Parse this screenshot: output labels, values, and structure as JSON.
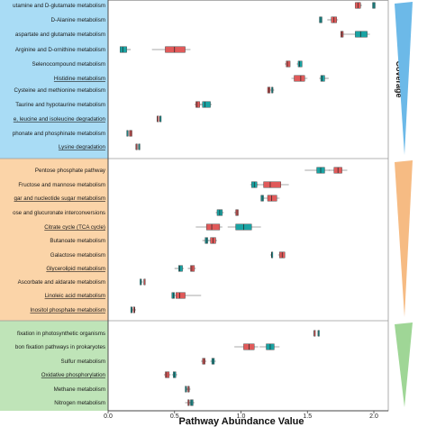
{
  "chart_data": {
    "type": "boxplot",
    "xlabel": "Pathway Abundance Value",
    "xlim": [
      0.0,
      2.0
    ],
    "xticks": [
      "0.0",
      "0.5",
      "1.0",
      "1.5",
      "2.0"
    ],
    "side_label": "Coverage",
    "colors": {
      "group_red": "#e05a5a",
      "group_teal": "#1aa3a3",
      "panel_blue": "#a9dcf5",
      "panel_orange": "#fbd4a8",
      "panel_green": "#bfe4b8",
      "tri_blue": "#6cb9e8",
      "tri_orange": "#f6bb83",
      "tri_green": "#9fd696"
    },
    "panels": [
      {
        "color_key": "blue",
        "rows": [
          {
            "label": "utamine and D-glutamate metabolism",
            "underline": false,
            "boxes": [
              {
                "color": "red",
                "q1": 1.86,
                "med": 1.88,
                "q3": 1.9,
                "wlo": 1.86,
                "whi": 1.91
              },
              {
                "color": "teal",
                "q1": 1.99,
                "med": 2.0,
                "q3": 2.01,
                "wlo": 1.99,
                "whi": 2.01
              }
            ]
          },
          {
            "label": "D-Alanine metabolism",
            "underline": false,
            "boxes": [
              {
                "color": "red",
                "q1": 1.68,
                "med": 1.7,
                "q3": 1.72,
                "wlo": 1.65,
                "whi": 1.73
              },
              {
                "color": "teal",
                "q1": 1.59,
                "med": 1.6,
                "q3": 1.61,
                "wlo": 1.59,
                "whi": 1.61
              }
            ]
          },
          {
            "label": "aspartate and glutamate metabolism",
            "underline": false,
            "boxes": [
              {
                "color": "red",
                "q1": 1.75,
                "med": 1.76,
                "q3": 1.77,
                "wlo": 1.75,
                "whi": 1.77
              },
              {
                "color": "teal",
                "q1": 1.86,
                "med": 1.9,
                "q3": 1.95,
                "wlo": 1.75,
                "whi": 1.97
              }
            ]
          },
          {
            "label": "Arginine and D-ornithine metabolism",
            "underline": false,
            "boxes": [
              {
                "color": "red",
                "q1": 0.43,
                "med": 0.5,
                "q3": 0.58,
                "wlo": 0.33,
                "whi": 0.62
              },
              {
                "color": "teal",
                "q1": 0.09,
                "med": 0.11,
                "q3": 0.14,
                "wlo": 0.09,
                "whi": 0.17
              }
            ]
          },
          {
            "label": "Selenocompound metabolism",
            "underline": false,
            "boxes": [
              {
                "color": "red",
                "q1": 1.34,
                "med": 1.35,
                "q3": 1.37,
                "wlo": 1.33,
                "whi": 1.37
              },
              {
                "color": "teal",
                "q1": 1.43,
                "med": 1.44,
                "q3": 1.46,
                "wlo": 1.42,
                "whi": 1.46
              }
            ]
          },
          {
            "label": "Histidine metabolism",
            "underline": true,
            "boxes": [
              {
                "color": "red",
                "q1": 1.4,
                "med": 1.45,
                "q3": 1.48,
                "wlo": 1.38,
                "whi": 1.5
              },
              {
                "color": "teal",
                "q1": 1.6,
                "med": 1.61,
                "q3": 1.63,
                "wlo": 1.59,
                "whi": 1.66
              }
            ]
          },
          {
            "label": "Cysteine and methionine metabolism",
            "underline": false,
            "boxes": [
              {
                "color": "red",
                "q1": 1.2,
                "med": 1.21,
                "q3": 1.22,
                "wlo": 1.2,
                "whi": 1.22
              },
              {
                "color": "teal",
                "q1": 1.23,
                "med": 1.24,
                "q3": 1.24,
                "wlo": 1.22,
                "whi": 1.25
              }
            ]
          },
          {
            "label": "Taurine and hypotaurine metabolism",
            "underline": false,
            "boxes": [
              {
                "color": "red",
                "q1": 0.66,
                "med": 0.67,
                "q3": 0.69,
                "wlo": 0.65,
                "whi": 0.7
              },
              {
                "color": "teal",
                "q1": 0.71,
                "med": 0.73,
                "q3": 0.77,
                "wlo": 0.69,
                "whi": 0.78
              }
            ]
          },
          {
            "label": "e, leucine and isoleucine degradation",
            "underline": true,
            "boxes": [
              {
                "color": "red",
                "q1": 0.37,
                "med": 0.37,
                "q3": 0.38,
                "wlo": 0.37,
                "whi": 0.38
              },
              {
                "color": "teal",
                "q1": 0.39,
                "med": 0.39,
                "q3": 0.4,
                "wlo": 0.39,
                "whi": 0.4
              }
            ]
          },
          {
            "label": "phonate and phosphinate metabolism",
            "underline": false,
            "boxes": [
              {
                "color": "red",
                "q1": 0.16,
                "med": 0.17,
                "q3": 0.18,
                "wlo": 0.16,
                "whi": 0.18
              },
              {
                "color": "teal",
                "q1": 0.14,
                "med": 0.15,
                "q3": 0.15,
                "wlo": 0.14,
                "whi": 0.15
              }
            ]
          },
          {
            "label": "Lysine degradation",
            "underline": true,
            "boxes": [
              {
                "color": "red",
                "q1": 0.21,
                "med": 0.21,
                "q3": 0.22,
                "wlo": 0.21,
                "whi": 0.22
              },
              {
                "color": "teal",
                "q1": 0.23,
                "med": 0.23,
                "q3": 0.24,
                "wlo": 0.23,
                "whi": 0.24
              }
            ]
          }
        ]
      },
      {
        "color_key": "orange",
        "rows": [
          {
            "label": "Pentose phosphate pathway",
            "underline": false,
            "boxes": [
              {
                "color": "red",
                "q1": 1.7,
                "med": 1.73,
                "q3": 1.76,
                "wlo": 1.66,
                "whi": 1.8
              },
              {
                "color": "teal",
                "q1": 1.57,
                "med": 1.6,
                "q3": 1.63,
                "wlo": 1.48,
                "whi": 1.67
              }
            ]
          },
          {
            "label": "Fructose and mannose metabolism",
            "underline": false,
            "boxes": [
              {
                "color": "red",
                "q1": 1.17,
                "med": 1.22,
                "q3": 1.3,
                "wlo": 1.1,
                "whi": 1.36
              },
              {
                "color": "teal",
                "q1": 1.08,
                "med": 1.1,
                "q3": 1.12,
                "wlo": 1.07,
                "whi": 1.13
              }
            ]
          },
          {
            "label": "gar and nucleotide sugar metabolism",
            "underline": true,
            "boxes": [
              {
                "color": "red",
                "q1": 1.2,
                "med": 1.23,
                "q3": 1.27,
                "wlo": 1.18,
                "whi": 1.29
              },
              {
                "color": "teal",
                "q1": 1.15,
                "med": 1.16,
                "q3": 1.17,
                "wlo": 1.15,
                "whi": 1.18
              }
            ]
          },
          {
            "label": "ose and glucuronate interconversions",
            "underline": false,
            "boxes": [
              {
                "color": "red",
                "q1": 0.96,
                "med": 0.97,
                "q3": 0.98,
                "wlo": 0.95,
                "whi": 0.98
              },
              {
                "color": "teal",
                "q1": 0.82,
                "med": 0.84,
                "q3": 0.86,
                "wlo": 0.81,
                "whi": 0.87
              }
            ]
          },
          {
            "label": "Citrate cycle (TCA cycle)",
            "underline": true,
            "boxes": [
              {
                "color": "red",
                "q1": 0.74,
                "med": 0.78,
                "q3": 0.84,
                "wlo": 0.66,
                "whi": 0.86
              },
              {
                "color": "teal",
                "q1": 0.96,
                "med": 1.02,
                "q3": 1.08,
                "wlo": 0.9,
                "whi": 1.15
              }
            ]
          },
          {
            "label": "Butanoate metabolism",
            "underline": false,
            "boxes": [
              {
                "color": "red",
                "q1": 0.77,
                "med": 0.79,
                "q3": 0.81,
                "wlo": 0.75,
                "whi": 0.82
              },
              {
                "color": "teal",
                "q1": 0.73,
                "med": 0.74,
                "q3": 0.75,
                "wlo": 0.71,
                "whi": 0.76
              }
            ]
          },
          {
            "label": "Galactose metabolism",
            "underline": false,
            "boxes": [
              {
                "color": "red",
                "q1": 1.29,
                "med": 1.31,
                "q3": 1.33,
                "wlo": 1.28,
                "whi": 1.33
              },
              {
                "color": "teal",
                "q1": 1.23,
                "med": 1.23,
                "q3": 1.24,
                "wlo": 1.22,
                "whi": 1.24
              }
            ]
          },
          {
            "label": "Glycerolipid metabolism",
            "underline": true,
            "boxes": [
              {
                "color": "red",
                "q1": 0.62,
                "med": 0.63,
                "q3": 0.65,
                "wlo": 0.6,
                "whi": 0.66
              },
              {
                "color": "teal",
                "q1": 0.53,
                "med": 0.54,
                "q3": 0.56,
                "wlo": 0.5,
                "whi": 0.57
              }
            ]
          },
          {
            "label": "Ascorbate and aldarate metabolism",
            "underline": false,
            "boxes": [
              {
                "color": "red",
                "q1": 0.27,
                "med": 0.27,
                "q3": 0.28,
                "wlo": 0.27,
                "whi": 0.28
              },
              {
                "color": "teal",
                "q1": 0.24,
                "med": 0.25,
                "q3": 0.25,
                "wlo": 0.24,
                "whi": 0.26
              }
            ]
          },
          {
            "label": "Linoleic acid metabolism",
            "underline": true,
            "boxes": [
              {
                "color": "red",
                "q1": 0.51,
                "med": 0.54,
                "q3": 0.58,
                "wlo": 0.49,
                "whi": 0.7
              },
              {
                "color": "teal",
                "q1": 0.48,
                "med": 0.49,
                "q3": 0.5,
                "wlo": 0.48,
                "whi": 0.5
              }
            ]
          },
          {
            "label": "Inositol phosphate metabolism",
            "underline": true,
            "boxes": [
              {
                "color": "red",
                "q1": 0.19,
                "med": 0.2,
                "q3": 0.2,
                "wlo": 0.19,
                "whi": 0.21
              },
              {
                "color": "teal",
                "q1": 0.17,
                "med": 0.18,
                "q3": 0.18,
                "wlo": 0.17,
                "whi": 0.19
              }
            ]
          }
        ]
      },
      {
        "color_key": "green",
        "rows": [
          {
            "label": "fixation in photosynthetic organisms",
            "underline": false,
            "boxes": [
              {
                "color": "red",
                "q1": 1.55,
                "med": 1.55,
                "q3": 1.56,
                "wlo": 1.55,
                "whi": 1.56
              },
              {
                "color": "teal",
                "q1": 1.58,
                "med": 1.58,
                "q3": 1.59,
                "wlo": 1.58,
                "whi": 1.59
              }
            ]
          },
          {
            "label": "bon fixation pathways in prokaryotes",
            "underline": false,
            "boxes": [
              {
                "color": "red",
                "q1": 1.02,
                "med": 1.06,
                "q3": 1.1,
                "wlo": 0.95,
                "whi": 1.13
              },
              {
                "color": "teal",
                "q1": 1.19,
                "med": 1.22,
                "q3": 1.25,
                "wlo": 1.14,
                "whi": 1.29
              }
            ]
          },
          {
            "label": "Sulfur metabolism",
            "underline": false,
            "boxes": [
              {
                "color": "red",
                "q1": 0.71,
                "med": 0.72,
                "q3": 0.73,
                "wlo": 0.7,
                "whi": 0.74
              },
              {
                "color": "teal",
                "q1": 0.78,
                "med": 0.79,
                "q3": 0.8,
                "wlo": 0.77,
                "whi": 0.81
              }
            ]
          },
          {
            "label": "Oxidative phosphorylation",
            "underline": true,
            "boxes": [
              {
                "color": "red",
                "q1": 0.43,
                "med": 0.44,
                "q3": 0.46,
                "wlo": 0.42,
                "whi": 0.47
              },
              {
                "color": "teal",
                "q1": 0.49,
                "med": 0.5,
                "q3": 0.51,
                "wlo": 0.48,
                "whi": 0.52
              }
            ]
          },
          {
            "label": "Methane metabolism",
            "underline": false,
            "boxes": [
              {
                "color": "red",
                "q1": 0.6,
                "med": 0.61,
                "q3": 0.61,
                "wlo": 0.59,
                "whi": 0.62
              },
              {
                "color": "teal",
                "q1": 0.58,
                "med": 0.59,
                "q3": 0.59,
                "wlo": 0.58,
                "whi": 0.6
              }
            ]
          },
          {
            "label": "Nitrogen metabolism",
            "underline": false,
            "boxes": [
              {
                "color": "red",
                "q1": 0.6,
                "med": 0.61,
                "q3": 0.61,
                "wlo": 0.58,
                "whi": 0.62
              },
              {
                "color": "teal",
                "q1": 0.62,
                "med": 0.63,
                "q3": 0.64,
                "wlo": 0.61,
                "whi": 0.65
              }
            ]
          }
        ]
      }
    ]
  }
}
